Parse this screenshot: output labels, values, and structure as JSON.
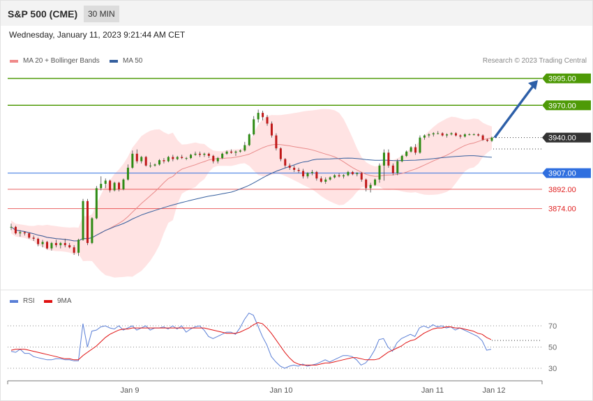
{
  "header": {
    "title": "S&P 500 (CME)",
    "timeframe": "30 MIN"
  },
  "datetime": "Wednesday, January 11, 2023 9:21:44 AM CET",
  "legend_main": [
    {
      "label": "MA 20 + Bollinger Bands",
      "color": "#f08a8a"
    },
    {
      "label": "MA 50",
      "color": "#355f9e"
    }
  ],
  "credit": "Research © 2023 Trading Central",
  "legend_rsi": [
    {
      "label": "RSI",
      "color": "#5a7fd6"
    },
    {
      "label": "9MA",
      "color": "#e01010"
    }
  ],
  "chart_data": [
    {
      "type": "candlestick",
      "ylim": [
        3810,
        4003
      ],
      "price_levels": [
        {
          "value": 3995.0,
          "label": "3995.00",
          "color": "#4e9a06",
          "style": "solid",
          "tag": "box"
        },
        {
          "value": 3970.0,
          "label": "3970.00",
          "color": "#4e9a06",
          "style": "solid",
          "tag": "box"
        },
        {
          "value": 3940.0,
          "label": "3940.00",
          "color": "#333333",
          "style": "dotted",
          "tag": "box"
        },
        {
          "value": 3907.0,
          "label": "3907.00",
          "color": "#2f6fdf",
          "style": "solid",
          "tag": "box"
        },
        {
          "value": 3892.0,
          "label": "3892.00",
          "color": "#e02020",
          "style": "solid",
          "tag": "text"
        },
        {
          "value": 3874.0,
          "label": "3874.00",
          "color": "#e02020",
          "style": "solid",
          "tag": "text"
        }
      ],
      "forecast_arrow": {
        "from": 3940,
        "to": 3996
      },
      "x_ticks": [
        {
          "label": "Jan 9"
        },
        {
          "label": "Jan 10"
        },
        {
          "label": "Jan 11"
        },
        {
          "label": "Jan 12"
        }
      ],
      "ohlc": [
        [
          3857,
          3860,
          3854,
          3857
        ],
        [
          3857,
          3858,
          3850,
          3851
        ],
        [
          3851,
          3854,
          3848,
          3852
        ],
        [
          3852,
          3853,
          3849,
          3851
        ],
        [
          3851,
          3852,
          3846,
          3847
        ],
        [
          3847,
          3849,
          3844,
          3846
        ],
        [
          3846,
          3847,
          3839,
          3841
        ],
        [
          3841,
          3845,
          3838,
          3843
        ],
        [
          3843,
          3844,
          3836,
          3837
        ],
        [
          3837,
          3843,
          3835,
          3842
        ],
        [
          3842,
          3845,
          3838,
          3840
        ],
        [
          3840,
          3843,
          3837,
          3842
        ],
        [
          3842,
          3846,
          3838,
          3840
        ],
        [
          3840,
          3842,
          3837,
          3838
        ],
        [
          3838,
          3840,
          3831,
          3833
        ],
        [
          3833,
          3846,
          3830,
          3845
        ],
        [
          3845,
          3883,
          3844,
          3881
        ],
        [
          3881,
          3883,
          3840,
          3842
        ],
        [
          3842,
          3866,
          3841,
          3865
        ],
        [
          3865,
          3895,
          3864,
          3893
        ],
        [
          3893,
          3904,
          3891,
          3897
        ],
        [
          3897,
          3902,
          3893,
          3900
        ],
        [
          3900,
          3901,
          3889,
          3891
        ],
        [
          3891,
          3899,
          3890,
          3898
        ],
        [
          3898,
          3899,
          3890,
          3892
        ],
        [
          3892,
          3902,
          3891,
          3901
        ],
        [
          3901,
          3915,
          3900,
          3912
        ],
        [
          3912,
          3928,
          3911,
          3925
        ],
        [
          3925,
          3929,
          3916,
          3918
        ],
        [
          3918,
          3923,
          3916,
          3922
        ],
        [
          3922,
          3923,
          3913,
          3914
        ],
        [
          3914,
          3917,
          3912,
          3914
        ],
        [
          3914,
          3916,
          3913,
          3915
        ],
        [
          3915,
          3920,
          3914,
          3919
        ],
        [
          3919,
          3921,
          3916,
          3918
        ],
        [
          3918,
          3923,
          3917,
          3922
        ],
        [
          3922,
          3924,
          3918,
          3920
        ],
        [
          3920,
          3923,
          3919,
          3922
        ],
        [
          3922,
          3924,
          3920,
          3921
        ],
        [
          3921,
          3922,
          3919,
          3921
        ],
        [
          3921,
          3925,
          3920,
          3924
        ],
        [
          3924,
          3927,
          3923,
          3925
        ],
        [
          3925,
          3927,
          3922,
          3924
        ],
        [
          3924,
          3926,
          3922,
          3925
        ],
        [
          3925,
          3926,
          3921,
          3923
        ],
        [
          3923,
          3924,
          3916,
          3918
        ],
        [
          3918,
          3922,
          3916,
          3921
        ],
        [
          3921,
          3926,
          3920,
          3925
        ],
        [
          3925,
          3928,
          3924,
          3927
        ],
        [
          3927,
          3929,
          3925,
          3926
        ],
        [
          3926,
          3928,
          3923,
          3927
        ],
        [
          3927,
          3929,
          3926,
          3928
        ],
        [
          3928,
          3936,
          3927,
          3933
        ],
        [
          3933,
          3944,
          3932,
          3943
        ],
        [
          3943,
          3960,
          3942,
          3957
        ],
        [
          3957,
          3966,
          3954,
          3963
        ],
        [
          3963,
          3965,
          3956,
          3959
        ],
        [
          3959,
          3961,
          3951,
          3953
        ],
        [
          3953,
          3955,
          3940,
          3942
        ],
        [
          3942,
          3944,
          3928,
          3930
        ],
        [
          3930,
          3931,
          3918,
          3920
        ],
        [
          3920,
          3921,
          3912,
          3914
        ],
        [
          3914,
          3916,
          3910,
          3912
        ],
        [
          3912,
          3914,
          3908,
          3910
        ],
        [
          3910,
          3912,
          3907,
          3909
        ],
        [
          3909,
          3911,
          3902,
          3904
        ],
        [
          3904,
          3908,
          3902,
          3907
        ],
        [
          3907,
          3910,
          3905,
          3908
        ],
        [
          3908,
          3909,
          3900,
          3902
        ],
        [
          3902,
          3904,
          3898,
          3899
        ],
        [
          3899,
          3903,
          3897,
          3901
        ],
        [
          3901,
          3904,
          3900,
          3903
        ],
        [
          3903,
          3906,
          3902,
          3905
        ],
        [
          3905,
          3907,
          3903,
          3904
        ],
        [
          3904,
          3906,
          3902,
          3905
        ],
        [
          3905,
          3909,
          3904,
          3908
        ],
        [
          3908,
          3909,
          3905,
          3906
        ],
        [
          3906,
          3908,
          3904,
          3907
        ],
        [
          3907,
          3908,
          3899,
          3901
        ],
        [
          3901,
          3902,
          3890,
          3893
        ],
        [
          3893,
          3898,
          3889,
          3896
        ],
        [
          3896,
          3902,
          3895,
          3901
        ],
        [
          3901,
          3916,
          3898,
          3914
        ],
        [
          3914,
          3929,
          3900,
          3926
        ],
        [
          3926,
          3929,
          3912,
          3914
        ],
        [
          3914,
          3916,
          3905,
          3907
        ],
        [
          3907,
          3920,
          3905,
          3918
        ],
        [
          3918,
          3924,
          3917,
          3923
        ],
        [
          3923,
          3928,
          3922,
          3927
        ],
        [
          3927,
          3932,
          3926,
          3931
        ],
        [
          3931,
          3934,
          3924,
          3926
        ],
        [
          3926,
          3942,
          3925,
          3940
        ],
        [
          3940,
          3943,
          3938,
          3942
        ],
        [
          3942,
          3944,
          3940,
          3943
        ],
        [
          3943,
          3945,
          3941,
          3944
        ],
        [
          3944,
          3946,
          3943,
          3944
        ],
        [
          3944,
          3945,
          3941,
          3942
        ],
        [
          3942,
          3944,
          3940,
          3943
        ],
        [
          3943,
          3945,
          3942,
          3944
        ],
        [
          3944,
          3945,
          3941,
          3942
        ],
        [
          3942,
          3943,
          3939,
          3941
        ],
        [
          3941,
          3944,
          3940,
          3943
        ],
        [
          3943,
          3944,
          3942,
          3943
        ],
        [
          3943,
          3944,
          3942,
          3943
        ],
        [
          3943,
          3944,
          3941,
          3942
        ],
        [
          3942,
          3943,
          3937,
          3938
        ],
        [
          3938,
          3939,
          3936,
          3937
        ],
        [
          3937,
          3941,
          3936,
          3940
        ]
      ]
    },
    {
      "type": "line",
      "ylim": [
        15,
        90
      ],
      "hlines": [
        {
          "value": 70,
          "label": "70"
        },
        {
          "value": 50,
          "label": "50"
        },
        {
          "value": 30,
          "label": "30"
        }
      ],
      "series": [
        {
          "name": "RSI",
          "color": "#5a7fd6",
          "values": [
            46,
            45,
            48,
            44,
            44,
            41,
            40,
            39,
            38,
            38,
            39,
            39,
            38,
            38,
            37,
            37,
            72,
            50,
            65,
            66,
            69,
            70,
            68,
            67,
            70,
            66,
            68,
            70,
            66,
            68,
            70,
            66,
            68,
            68,
            69,
            67,
            70,
            67,
            70,
            64,
            67,
            69,
            70,
            66,
            60,
            58,
            60,
            62,
            64,
            64,
            62,
            68,
            76,
            82,
            80,
            70,
            60,
            52,
            41,
            36,
            32,
            30,
            32,
            33,
            32,
            34,
            32,
            33,
            34,
            36,
            38,
            36,
            38,
            40,
            42,
            42,
            41,
            38,
            33,
            35,
            40,
            47,
            57,
            58,
            50,
            46,
            54,
            58,
            60,
            62,
            60,
            68,
            70,
            68,
            71,
            69,
            70,
            68,
            69,
            66,
            68,
            66,
            64,
            62,
            60,
            56,
            47,
            48
          ]
        },
        {
          "name": "9MA",
          "color": "#e01010",
          "values": [
            47,
            48,
            48,
            48,
            47,
            46,
            45,
            44,
            43,
            42,
            41,
            40,
            39,
            39,
            38,
            38,
            42,
            45,
            48,
            51,
            55,
            59,
            62,
            64,
            66,
            67,
            67,
            68,
            68,
            68,
            68,
            68,
            68,
            68,
            68,
            68,
            68,
            68,
            68,
            68,
            68,
            68,
            68,
            68,
            67,
            66,
            65,
            64,
            63,
            63,
            63,
            64,
            66,
            68,
            71,
            73,
            72,
            68,
            63,
            57,
            51,
            45,
            40,
            36,
            34,
            33,
            33,
            33,
            33,
            34,
            35,
            35,
            36,
            37,
            38,
            39,
            40,
            40,
            39,
            38,
            38,
            38,
            39,
            42,
            45,
            47,
            49,
            51,
            54,
            56,
            57,
            60,
            63,
            65,
            67,
            68,
            68,
            69,
            69,
            68,
            68,
            67,
            66,
            65,
            63,
            62,
            59,
            57
          ]
        }
      ]
    }
  ]
}
